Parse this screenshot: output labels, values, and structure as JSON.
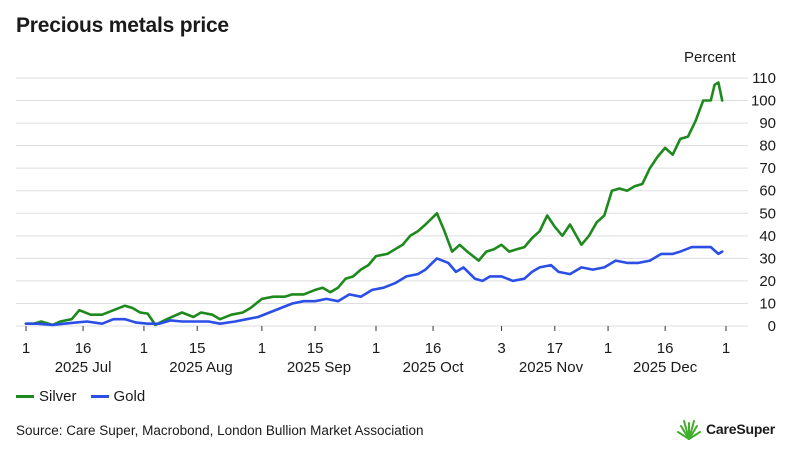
{
  "header": {
    "title": "Precious metals price",
    "unit": "Percent"
  },
  "footer": {
    "source": "Source: Care Super, Macrobond,  London Bullion Market Association",
    "brand": "CareSuper"
  },
  "colors": {
    "silver": "#1e8a1e",
    "gold": "#2b4fe6",
    "grid": "#dddddd",
    "logo": "#3fae2a"
  },
  "chart_data": {
    "type": "line",
    "ylabel": "Percent",
    "ylim": [
      0,
      110
    ],
    "yticks": [
      0,
      10,
      20,
      30,
      40,
      50,
      60,
      70,
      80,
      90,
      100,
      110
    ],
    "grid": true,
    "legend_position": "bottom-left",
    "x_start": "2025-07-01",
    "x_end": "2026-01-01",
    "x_ticks": [
      {
        "date": "2025-07-01",
        "label": "1"
      },
      {
        "date": "2025-07-16",
        "label": "16"
      },
      {
        "date": "2025-08-01",
        "label": "1"
      },
      {
        "date": "2025-08-15",
        "label": "15"
      },
      {
        "date": "2025-09-01",
        "label": "1"
      },
      {
        "date": "2025-09-15",
        "label": "15"
      },
      {
        "date": "2025-10-01",
        "label": "1"
      },
      {
        "date": "2025-10-16",
        "label": "16"
      },
      {
        "date": "2025-11-03",
        "label": "3"
      },
      {
        "date": "2025-11-17",
        "label": "17"
      },
      {
        "date": "2025-12-01",
        "label": "1"
      },
      {
        "date": "2025-12-16",
        "label": "16"
      },
      {
        "date": "2026-01-01",
        "label": "1"
      }
    ],
    "month_labels": [
      {
        "date": "2025-07-16",
        "label": "2025 Jul"
      },
      {
        "date": "2025-08-16",
        "label": "2025 Aug"
      },
      {
        "date": "2025-09-16",
        "label": "2025 Sep"
      },
      {
        "date": "2025-10-16",
        "label": "2025 Oct"
      },
      {
        "date": "2025-11-16",
        "label": "2025 Nov"
      },
      {
        "date": "2025-12-16",
        "label": "2025 Dec"
      }
    ],
    "series": [
      {
        "name": "Silver",
        "color": "#1e8a1e",
        "points": [
          [
            "2025-07-01",
            1
          ],
          [
            "2025-07-03",
            1
          ],
          [
            "2025-07-05",
            2
          ],
          [
            "2025-07-08",
            0.5
          ],
          [
            "2025-07-10",
            2
          ],
          [
            "2025-07-13",
            3
          ],
          [
            "2025-07-15",
            7
          ],
          [
            "2025-07-18",
            5
          ],
          [
            "2025-07-21",
            5
          ],
          [
            "2025-07-24",
            7
          ],
          [
            "2025-07-27",
            9
          ],
          [
            "2025-07-29",
            8
          ],
          [
            "2025-07-31",
            6
          ],
          [
            "2025-08-02",
            5.5
          ],
          [
            "2025-08-04",
            0.5
          ],
          [
            "2025-08-07",
            3
          ],
          [
            "2025-08-11",
            6
          ],
          [
            "2025-08-14",
            4
          ],
          [
            "2025-08-16",
            6
          ],
          [
            "2025-08-19",
            5
          ],
          [
            "2025-08-21",
            3
          ],
          [
            "2025-08-24",
            5
          ],
          [
            "2025-08-27",
            6
          ],
          [
            "2025-08-29",
            8
          ],
          [
            "2025-09-01",
            12
          ],
          [
            "2025-09-04",
            13
          ],
          [
            "2025-09-07",
            13
          ],
          [
            "2025-09-09",
            14
          ],
          [
            "2025-09-12",
            14
          ],
          [
            "2025-09-15",
            16
          ],
          [
            "2025-09-17",
            17
          ],
          [
            "2025-09-19",
            15
          ],
          [
            "2025-09-21",
            17
          ],
          [
            "2025-09-23",
            21
          ],
          [
            "2025-09-25",
            22
          ],
          [
            "2025-09-27",
            25
          ],
          [
            "2025-09-29",
            27
          ],
          [
            "2025-10-01",
            31
          ],
          [
            "2025-10-04",
            32
          ],
          [
            "2025-10-06",
            34
          ],
          [
            "2025-10-08",
            36
          ],
          [
            "2025-10-10",
            40
          ],
          [
            "2025-10-12",
            42
          ],
          [
            "2025-10-14",
            45
          ],
          [
            "2025-10-17",
            50
          ],
          [
            "2025-10-19",
            42
          ],
          [
            "2025-10-21",
            33
          ],
          [
            "2025-10-23",
            36
          ],
          [
            "2025-10-25",
            33
          ],
          [
            "2025-10-28",
            29
          ],
          [
            "2025-10-30",
            33
          ],
          [
            "2025-11-01",
            34
          ],
          [
            "2025-11-03",
            36
          ],
          [
            "2025-11-05",
            33
          ],
          [
            "2025-11-07",
            34
          ],
          [
            "2025-11-09",
            35
          ],
          [
            "2025-11-11",
            39
          ],
          [
            "2025-11-13",
            42
          ],
          [
            "2025-11-15",
            49
          ],
          [
            "2025-11-17",
            44
          ],
          [
            "2025-11-19",
            40
          ],
          [
            "2025-11-21",
            45
          ],
          [
            "2025-11-24",
            36
          ],
          [
            "2025-11-26",
            40
          ],
          [
            "2025-11-28",
            46
          ],
          [
            "2025-11-30",
            49
          ],
          [
            "2025-12-02",
            60
          ],
          [
            "2025-12-04",
            61
          ],
          [
            "2025-12-06",
            60
          ],
          [
            "2025-12-08",
            62
          ],
          [
            "2025-12-10",
            63
          ],
          [
            "2025-12-12",
            70
          ],
          [
            "2025-12-14",
            75
          ],
          [
            "2025-12-16",
            79
          ],
          [
            "2025-12-18",
            76
          ],
          [
            "2025-12-20",
            83
          ],
          [
            "2025-12-22",
            84
          ],
          [
            "2025-12-24",
            91
          ],
          [
            "2025-12-26",
            100
          ],
          [
            "2025-12-28",
            100
          ],
          [
            "2025-12-29",
            107
          ],
          [
            "2025-12-30",
            108
          ],
          [
            "2025-12-31",
            100
          ]
        ]
      },
      {
        "name": "Gold",
        "color": "#2b4fe6",
        "points": [
          [
            "2025-07-01",
            1
          ],
          [
            "2025-07-04",
            1
          ],
          [
            "2025-07-08",
            0.5
          ],
          [
            "2025-07-11",
            1
          ],
          [
            "2025-07-14",
            1.5
          ],
          [
            "2025-07-17",
            2
          ],
          [
            "2025-07-21",
            1
          ],
          [
            "2025-07-24",
            3
          ],
          [
            "2025-07-27",
            3
          ],
          [
            "2025-07-30",
            1.5
          ],
          [
            "2025-08-02",
            1
          ],
          [
            "2025-08-05",
            1
          ],
          [
            "2025-08-08",
            2.5
          ],
          [
            "2025-08-11",
            2
          ],
          [
            "2025-08-14",
            2
          ],
          [
            "2025-08-18",
            2
          ],
          [
            "2025-08-21",
            1
          ],
          [
            "2025-08-25",
            2
          ],
          [
            "2025-08-28",
            3
          ],
          [
            "2025-08-31",
            4
          ],
          [
            "2025-09-03",
            6
          ],
          [
            "2025-09-06",
            8
          ],
          [
            "2025-09-09",
            10
          ],
          [
            "2025-09-12",
            11
          ],
          [
            "2025-09-15",
            11
          ],
          [
            "2025-09-18",
            12
          ],
          [
            "2025-09-21",
            11
          ],
          [
            "2025-09-24",
            14
          ],
          [
            "2025-09-27",
            13
          ],
          [
            "2025-09-30",
            16
          ],
          [
            "2025-10-03",
            17
          ],
          [
            "2025-10-06",
            19
          ],
          [
            "2025-10-09",
            22
          ],
          [
            "2025-10-12",
            23
          ],
          [
            "2025-10-14",
            25
          ],
          [
            "2025-10-17",
            30
          ],
          [
            "2025-10-20",
            28
          ],
          [
            "2025-10-22",
            24
          ],
          [
            "2025-10-24",
            26
          ],
          [
            "2025-10-27",
            21
          ],
          [
            "2025-10-29",
            20
          ],
          [
            "2025-10-31",
            22
          ],
          [
            "2025-11-03",
            22
          ],
          [
            "2025-11-06",
            20
          ],
          [
            "2025-11-09",
            21
          ],
          [
            "2025-11-11",
            24
          ],
          [
            "2025-11-13",
            26
          ],
          [
            "2025-11-16",
            27
          ],
          [
            "2025-11-18",
            24
          ],
          [
            "2025-11-21",
            23
          ],
          [
            "2025-11-24",
            26
          ],
          [
            "2025-11-27",
            25
          ],
          [
            "2025-11-30",
            26
          ],
          [
            "2025-12-03",
            29
          ],
          [
            "2025-12-06",
            28
          ],
          [
            "2025-12-09",
            28
          ],
          [
            "2025-12-12",
            29
          ],
          [
            "2025-12-15",
            32
          ],
          [
            "2025-12-18",
            32
          ],
          [
            "2025-12-20",
            33
          ],
          [
            "2025-12-23",
            35
          ],
          [
            "2025-12-26",
            35
          ],
          [
            "2025-12-28",
            35
          ],
          [
            "2025-12-30",
            32
          ],
          [
            "2025-12-31",
            33
          ]
        ]
      }
    ]
  }
}
